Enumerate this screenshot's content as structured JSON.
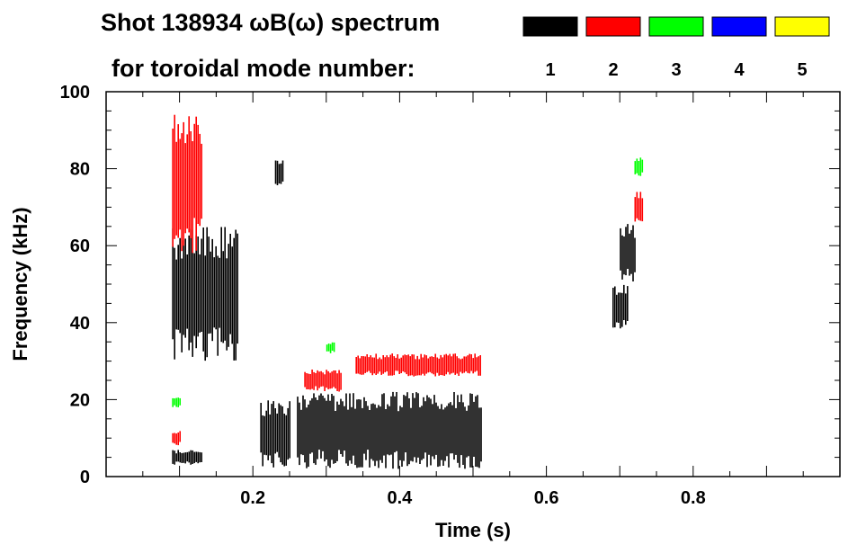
{
  "chart_data": {
    "type": "spectrogram",
    "title_line1": "Shot 138934 ωB(ω) spectrum",
    "title_line2": "for toroidal mode number:",
    "xlabel": "Time (s)",
    "ylabel": "Frequency (kHz)",
    "xlim": [
      0.0,
      1.0
    ],
    "ylim": [
      0,
      100
    ],
    "x_ticks": [
      0.2,
      0.4,
      0.6,
      0.8
    ],
    "x_tick_labels": [
      "0.2",
      "0.4",
      "0.6",
      "0.8"
    ],
    "y_ticks": [
      0,
      20,
      40,
      60,
      80,
      100
    ],
    "y_tick_labels": [
      "0",
      "20",
      "40",
      "60",
      "80",
      "100"
    ],
    "legend": [
      {
        "mode": "1",
        "color": "#000000"
      },
      {
        "mode": "2",
        "color": "#ff0000"
      },
      {
        "mode": "3",
        "color": "#00ff00"
      },
      {
        "mode": "4",
        "color": "#0000ff"
      },
      {
        "mode": "5",
        "color": "#ffff00"
      }
    ],
    "features": [
      {
        "mode": "1",
        "t": [
          0.09,
          0.18
        ],
        "f": [
          30,
          65
        ]
      },
      {
        "mode": "1",
        "t": [
          0.09,
          0.13
        ],
        "f": [
          3,
          7
        ]
      },
      {
        "mode": "1",
        "t": [
          0.21,
          0.25
        ],
        "f": [
          2,
          20
        ]
      },
      {
        "mode": "1",
        "t": [
          0.26,
          0.51
        ],
        "f": [
          2,
          22
        ]
      },
      {
        "mode": "1",
        "t": [
          0.69,
          0.71
        ],
        "f": [
          38,
          50
        ]
      },
      {
        "mode": "1",
        "t": [
          0.7,
          0.72
        ],
        "f": [
          50,
          66
        ]
      },
      {
        "mode": "1",
        "t": [
          0.23,
          0.24
        ],
        "f": [
          75,
          83
        ]
      },
      {
        "mode": "2",
        "t": [
          0.09,
          0.13
        ],
        "f": [
          58,
          95
        ]
      },
      {
        "mode": "2",
        "t": [
          0.27,
          0.32
        ],
        "f": [
          22,
          28
        ]
      },
      {
        "mode": "2",
        "t": [
          0.34,
          0.51
        ],
        "f": [
          26,
          32
        ]
      },
      {
        "mode": "2",
        "t": [
          0.72,
          0.73
        ],
        "f": [
          66,
          74
        ]
      },
      {
        "mode": "2",
        "t": [
          0.09,
          0.1
        ],
        "f": [
          8,
          12
        ]
      },
      {
        "mode": "3",
        "t": [
          0.72,
          0.73
        ],
        "f": [
          78,
          83
        ]
      },
      {
        "mode": "3",
        "t": [
          0.09,
          0.1
        ],
        "f": [
          18,
          21
        ]
      },
      {
        "mode": "3",
        "t": [
          0.3,
          0.31
        ],
        "f": [
          32,
          35
        ]
      }
    ]
  }
}
